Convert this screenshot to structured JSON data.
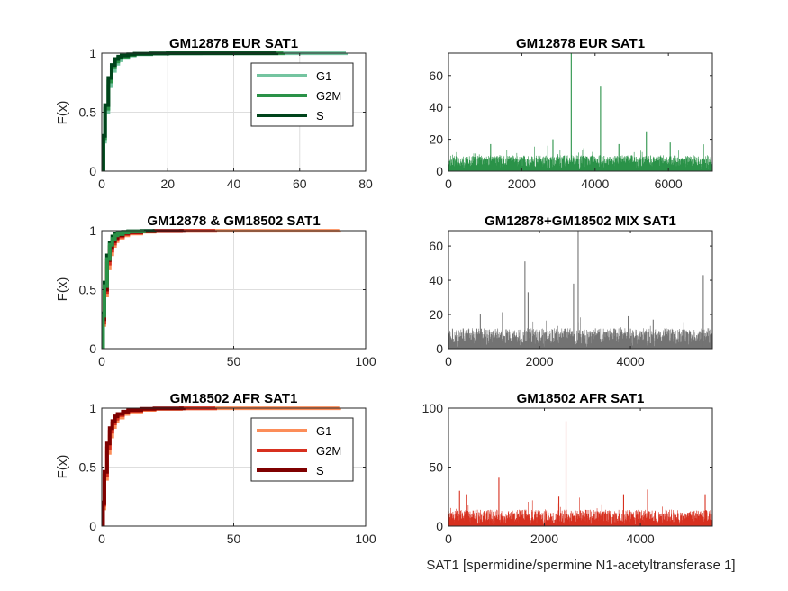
{
  "figure": {
    "xlabel_bottom": "SAT1 [spermidine/spermine N1-acetyltransferase 1]",
    "ylabel_cdf": "F(x)"
  },
  "colors": {
    "green_G1": "#74c4a0",
    "green_G2M": "#2a9248",
    "green_S": "#00441b",
    "green_bars": "#2a9248",
    "red_G1": "#fc8d59",
    "red_G2M": "#d7301f",
    "red_S": "#7f0000",
    "red_bars": "#d7301f",
    "gray_bars": "#737373"
  },
  "chart_data": [
    {
      "id": "cdf_eur",
      "type": "line",
      "title": "GM12878 EUR SAT1",
      "xlabel": "",
      "ylabel": "F(x)",
      "xlim": [
        0,
        80
      ],
      "ylim": [
        0,
        1
      ],
      "xticks": [
        0,
        20,
        40,
        60,
        80
      ],
      "yticks": [
        0,
        0.5,
        1
      ],
      "ytick_labels": [
        "0",
        "0.5",
        "1"
      ],
      "grid": true,
      "legend": {
        "placement": "top-right",
        "entries": [
          "G1",
          "G2M",
          "S"
        ]
      },
      "series": [
        {
          "name": "G1",
          "color": "#74c4a0",
          "max": 74,
          "x": [
            0,
            0.5,
            1,
            2,
            3,
            4,
            5,
            6,
            8,
            10,
            15,
            20,
            30,
            74
          ],
          "y": [
            0,
            0.25,
            0.5,
            0.72,
            0.85,
            0.91,
            0.94,
            0.96,
            0.98,
            0.99,
            0.995,
            0.998,
            0.999,
            1
          ]
        },
        {
          "name": "G2M",
          "color": "#2a9248",
          "max": 55,
          "x": [
            0,
            0.5,
            1,
            2,
            3,
            4,
            5,
            6,
            8,
            10,
            15,
            20,
            30,
            55
          ],
          "y": [
            0,
            0.28,
            0.53,
            0.76,
            0.88,
            0.93,
            0.96,
            0.97,
            0.985,
            0.993,
            0.997,
            0.999,
            0.9995,
            1
          ]
        },
        {
          "name": "S",
          "color": "#00441b",
          "max": 53,
          "x": [
            0,
            0.5,
            1,
            2,
            3,
            4,
            5,
            6,
            8,
            10,
            15,
            20,
            30,
            53
          ],
          "y": [
            0,
            0.3,
            0.56,
            0.79,
            0.9,
            0.95,
            0.97,
            0.98,
            0.99,
            0.995,
            0.998,
            0.999,
            0.9995,
            1
          ]
        }
      ]
    },
    {
      "id": "bars_eur",
      "type": "bar",
      "title": "GM12878 EUR SAT1",
      "xlim": [
        0,
        7200
      ],
      "ylim": [
        0,
        74
      ],
      "xticks": [
        0,
        2000,
        4000,
        6000
      ],
      "yticks": [
        0,
        20,
        40,
        60
      ],
      "n": 7200,
      "color": "#2a9248",
      "seed": 11,
      "base_max": 10,
      "spikes": [
        [
          3350,
          74
        ],
        [
          4150,
          53
        ],
        [
          0,
          40
        ],
        [
          5400,
          25
        ],
        [
          2850,
          20
        ],
        [
          6050,
          18
        ],
        [
          1150,
          17
        ],
        [
          4650,
          17
        ]
      ]
    },
    {
      "id": "cdf_mix",
      "type": "line",
      "title": "GM12878 & GM18502 SAT1",
      "xlabel": "",
      "ylabel": "F(x)",
      "xlim": [
        0,
        100
      ],
      "ylim": [
        0,
        1
      ],
      "xticks": [
        0,
        50,
        100
      ],
      "yticks": [
        0,
        0.5,
        1
      ],
      "ytick_labels": [
        "0",
        "0.5",
        "1"
      ],
      "grid": true,
      "series": [
        {
          "name": "",
          "color": "#fc8d59",
          "max": 90,
          "x": [
            0,
            0.5,
            1,
            2,
            3,
            4,
            5,
            6,
            8,
            10,
            15,
            20,
            30,
            43,
            90
          ],
          "y": [
            0,
            0.2,
            0.45,
            0.68,
            0.8,
            0.87,
            0.91,
            0.94,
            0.96,
            0.975,
            0.99,
            0.995,
            0.998,
            0.999,
            1
          ]
        },
        {
          "name": "",
          "color": "#d7301f",
          "max": 43,
          "x": [
            0,
            0.5,
            1,
            2,
            3,
            4,
            5,
            6,
            8,
            10,
            15,
            20,
            30,
            43
          ],
          "y": [
            0,
            0.22,
            0.48,
            0.72,
            0.83,
            0.89,
            0.93,
            0.95,
            0.97,
            0.982,
            0.993,
            0.997,
            0.999,
            1
          ]
        },
        {
          "name": "",
          "color": "#7f0000",
          "max": 31,
          "x": [
            0,
            0.5,
            1,
            2,
            3,
            4,
            5,
            6,
            8,
            10,
            15,
            20,
            31
          ],
          "y": [
            0,
            0.25,
            0.5,
            0.75,
            0.86,
            0.91,
            0.94,
            0.96,
            0.98,
            0.988,
            0.995,
            0.998,
            1
          ]
        },
        {
          "name": "",
          "color": "#00441b",
          "max": 20,
          "x": [
            0,
            0.5,
            1,
            2,
            3,
            4,
            5,
            6,
            8,
            10,
            15,
            20
          ],
          "y": [
            0,
            0.3,
            0.56,
            0.79,
            0.9,
            0.95,
            0.97,
            0.98,
            0.99,
            0.995,
            0.998,
            1
          ]
        },
        {
          "name": "",
          "color": "#2a9248",
          "max": 16,
          "x": [
            0,
            0.5,
            1,
            2,
            3,
            4,
            5,
            6,
            8,
            10,
            16
          ],
          "y": [
            0,
            0.28,
            0.53,
            0.76,
            0.88,
            0.93,
            0.96,
            0.97,
            0.985,
            0.993,
            1
          ]
        }
      ]
    },
    {
      "id": "bars_mix",
      "type": "bar",
      "title": "GM12878+GM18502 MIX SAT1",
      "xlim": [
        0,
        5800
      ],
      "ylim": [
        0,
        69
      ],
      "xticks": [
        0,
        2000,
        4000
      ],
      "yticks": [
        0,
        20,
        40,
        60
      ],
      "n": 5800,
      "color": "#737373",
      "seed": 23,
      "base_max": 12,
      "spikes": [
        [
          2850,
          69
        ],
        [
          1680,
          51
        ],
        [
          5600,
          43
        ],
        [
          2750,
          38
        ],
        [
          1750,
          33
        ],
        [
          700,
          20
        ],
        [
          3950,
          19
        ],
        [
          4500,
          17
        ]
      ]
    },
    {
      "id": "cdf_afr",
      "type": "line",
      "title": "GM18502 AFR SAT1",
      "xlabel": "",
      "ylabel": "F(x)",
      "xlim": [
        0,
        100
      ],
      "ylim": [
        0,
        1
      ],
      "xticks": [
        0,
        50,
        100
      ],
      "yticks": [
        0,
        0.5,
        1
      ],
      "ytick_labels": [
        "0",
        "0.5",
        "1"
      ],
      "grid": true,
      "legend": {
        "placement": "top-right",
        "entries": [
          "G1",
          "G2M",
          "S"
        ]
      },
      "series": [
        {
          "name": "G1",
          "color": "#fc8d59",
          "max": 90,
          "x": [
            0,
            0.5,
            1,
            2,
            3,
            4,
            5,
            6,
            8,
            10,
            15,
            20,
            30,
            43,
            90
          ],
          "y": [
            0,
            0.15,
            0.4,
            0.62,
            0.76,
            0.84,
            0.89,
            0.92,
            0.95,
            0.97,
            0.985,
            0.993,
            0.997,
            0.999,
            1
          ]
        },
        {
          "name": "G2M",
          "color": "#d7301f",
          "max": 43,
          "x": [
            0,
            0.5,
            1,
            2,
            3,
            4,
            5,
            6,
            8,
            10,
            15,
            20,
            30,
            43
          ],
          "y": [
            0,
            0.18,
            0.43,
            0.66,
            0.8,
            0.87,
            0.91,
            0.94,
            0.965,
            0.978,
            0.99,
            0.996,
            0.999,
            1
          ]
        },
        {
          "name": "S",
          "color": "#7f0000",
          "max": 31,
          "x": [
            0,
            0.5,
            1,
            2,
            3,
            4,
            5,
            6,
            8,
            10,
            15,
            20,
            31
          ],
          "y": [
            0,
            0.2,
            0.46,
            0.7,
            0.83,
            0.89,
            0.93,
            0.95,
            0.97,
            0.984,
            0.994,
            0.998,
            1
          ]
        }
      ]
    },
    {
      "id": "bars_afr",
      "type": "bar",
      "title": "GM18502 AFR SAT1",
      "xlim": [
        0,
        5500
      ],
      "ylim": [
        0,
        100
      ],
      "xticks": [
        0,
        2000,
        4000
      ],
      "yticks": [
        0,
        50,
        100
      ],
      "n": 5500,
      "color": "#d7301f",
      "seed": 37,
      "base_max": 14,
      "spikes": [
        [
          2450,
          89
        ],
        [
          1050,
          41
        ],
        [
          230,
          30
        ],
        [
          380,
          27
        ],
        [
          3650,
          27
        ],
        [
          4150,
          31
        ],
        [
          5350,
          27
        ],
        [
          2300,
          25
        ]
      ]
    }
  ]
}
